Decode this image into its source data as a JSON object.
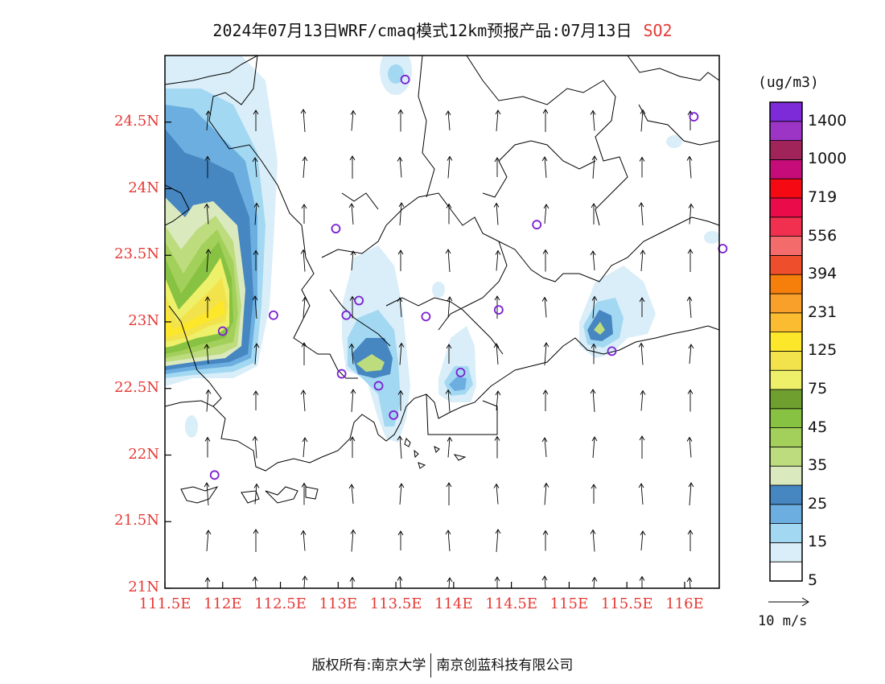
{
  "title": {
    "text": "2024年07月13日WRF/cmaq模式12km预报产品:07月13日",
    "pollutant": "SO2"
  },
  "map": {
    "lat_labels": [
      "24.5N",
      "24N",
      "23.5N",
      "23N",
      "22.5N",
      "22N",
      "21.5N",
      "21N"
    ],
    "lat_values": [
      24.5,
      24,
      23.5,
      23,
      22.5,
      22,
      21.5,
      21
    ],
    "lon_labels": [
      "111.5E",
      "112E",
      "112.5E",
      "113E",
      "113.5E",
      "114E",
      "114.5E",
      "115E",
      "115.5E",
      "116E"
    ],
    "lon_values": [
      111.5,
      112,
      112.5,
      113,
      113.5,
      114,
      114.5,
      115,
      115.5,
      116
    ],
    "extent": {
      "lon_min": 111.5,
      "lon_max": 116.3,
      "lat_min": 21,
      "lat_max": 25
    },
    "stations": [
      [
        113.58,
        24.82
      ],
      [
        116.08,
        24.54
      ],
      [
        112.98,
        23.7
      ],
      [
        114.72,
        23.73
      ],
      [
        116.33,
        23.55
      ],
      [
        112.44,
        23.05
      ],
      [
        113.07,
        23.05
      ],
      [
        113.18,
        23.16
      ],
      [
        113.76,
        23.04
      ],
      [
        114.39,
        23.09
      ],
      [
        112.0,
        22.93
      ],
      [
        113.03,
        22.61
      ],
      [
        113.35,
        22.52
      ],
      [
        114.06,
        22.62
      ],
      [
        113.48,
        22.3
      ],
      [
        115.37,
        22.78
      ],
      [
        111.93,
        21.85
      ]
    ],
    "wind_direction": "south",
    "colors": {
      "coast": "#000000",
      "station": "#7b1fd1",
      "axis_label": "#e53935"
    }
  },
  "colorbar": {
    "unit": "(ug/m3)",
    "labels": [
      "1400",
      "1000",
      "719",
      "556",
      "394",
      "231",
      "125",
      "75",
      "45",
      "35",
      "25",
      "15",
      "5"
    ],
    "colors": [
      "#ffffff",
      "#d9eef8",
      "#a3d8f2",
      "#6caee0",
      "#4686c1",
      "#dbe9bf",
      "#bcdc7e",
      "#a3d05a",
      "#88c242",
      "#6e9f2f",
      "#eef06a",
      "#f2e24c",
      "#fde72b",
      "#fcbc32",
      "#f9a02a",
      "#f67f0c",
      "#ef4e2c",
      "#f46b6b",
      "#f1304f",
      "#ea0c4a",
      "#f50a14",
      "#c50c78",
      "#a0245a",
      "#9c35c6",
      "#7d2ad8"
    ]
  },
  "wind_ref": {
    "label": "10 m/s"
  },
  "footer": {
    "left": "版权所有:南京大学",
    "right": "南京创蓝科技有限公司"
  }
}
